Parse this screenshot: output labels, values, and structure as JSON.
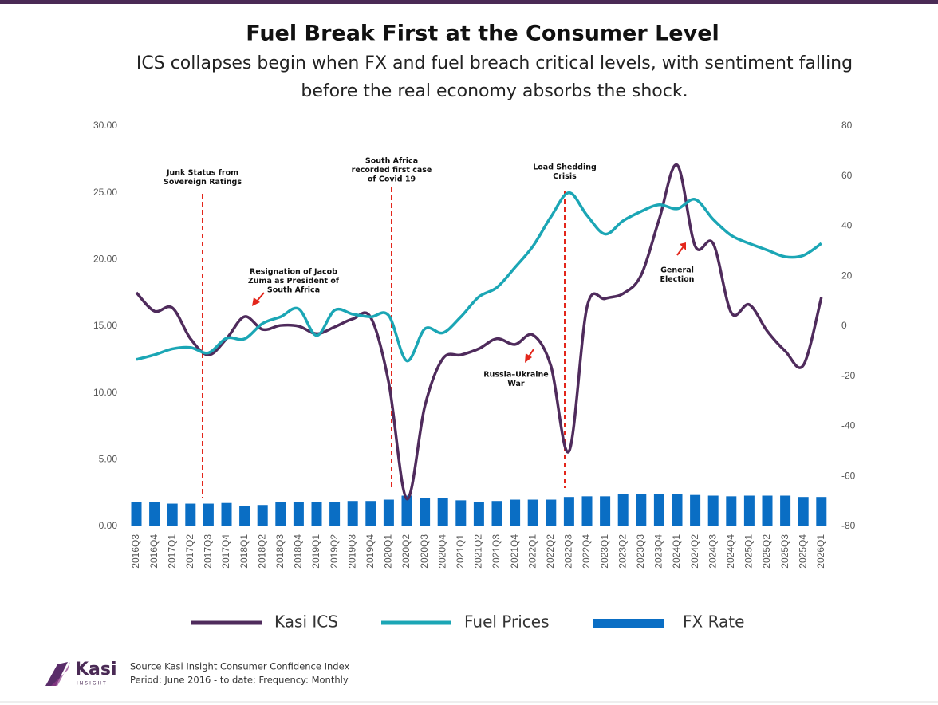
{
  "chart_data": {
    "type": "combo",
    "title": "Fuel Break First at the Consumer Level",
    "subtitle": [
      "ICS collapses begin when FX and fuel breach critical levels, with sentiment falling",
      "before the real economy absorbs the shock."
    ],
    "categories": [
      "2016Q3",
      "2016Q4",
      "2017Q1",
      "2017Q2",
      "2017Q3",
      "2017Q4",
      "2018Q1",
      "2018Q2",
      "2018Q3",
      "2018Q4",
      "2019Q1",
      "2019Q2",
      "2019Q3",
      "2019Q4",
      "2020Q1",
      "2020Q2",
      "2020Q3",
      "2020Q4",
      "2021Q1",
      "2021Q2",
      "2021Q3",
      "2021Q4",
      "2022Q1",
      "2022Q2",
      "2022Q3",
      "2022Q4",
      "2023Q1",
      "2023Q2",
      "2023Q3",
      "2023Q4",
      "2024Q1",
      "2024Q2",
      "2024Q3",
      "2024Q4",
      "2025Q1",
      "2025Q2",
      "2025Q3",
      "2025Q4",
      "2026Q1"
    ],
    "series": [
      {
        "name": "Kasi ICS",
        "type": "line",
        "axis": "y2",
        "color": "#4f2b5c",
        "values": [
          13.4,
          6,
          7.3,
          -5,
          -11.5,
          -5,
          3.8,
          -1.3,
          0.3,
          0,
          -3,
          -0.3,
          2.9,
          3.5,
          -22.6,
          -69,
          -32,
          -13,
          -11.5,
          -9,
          -5,
          -7.3,
          -3.5,
          -16,
          -50,
          7.7,
          11,
          13,
          20.4,
          42.7,
          64.4,
          32,
          33,
          5.4,
          8.6,
          -2,
          -10,
          -15.6,
          11.5
        ]
      },
      {
        "name": "Fuel Prices",
        "type": "line",
        "color": "#1ba6b5",
        "values": [
          12.5,
          12.85,
          13.3,
          13.4,
          13,
          14.1,
          14.05,
          15.2,
          15.7,
          16.3,
          14.3,
          16.2,
          15.9,
          15.7,
          15.8,
          12.4,
          14.8,
          14.5,
          15.7,
          17.2,
          17.9,
          19.4,
          21,
          23.2,
          25,
          23.3,
          21.9,
          22.9,
          23.6,
          24.1,
          23.8,
          24.5,
          23,
          21.8,
          21.2,
          20.7,
          20.2,
          20.3,
          21.2
        ]
      },
      {
        "name": "FX Rate",
        "type": "bar",
        "color": "#0a6ec4",
        "values": [
          1.8,
          1.8,
          1.7,
          1.7,
          1.7,
          1.75,
          1.55,
          1.6,
          1.8,
          1.85,
          1.8,
          1.85,
          1.9,
          1.9,
          2.0,
          2.3,
          2.15,
          2.1,
          1.95,
          1.85,
          1.9,
          2.0,
          2.0,
          2.0,
          2.2,
          2.25,
          2.25,
          2.4,
          2.4,
          2.4,
          2.4,
          2.35,
          2.3,
          2.25,
          2.3,
          2.3,
          2.3,
          2.2,
          2.2
        ]
      }
    ],
    "ylim": [
      0,
      30
    ],
    "yticks": [
      {
        "value": 0,
        "label": "0.00"
      },
      {
        "value": 5,
        "label": "5.00"
      },
      {
        "value": 10,
        "label": "10.00"
      },
      {
        "value": 15,
        "label": "15.00"
      },
      {
        "value": 20,
        "label": "20.00"
      },
      {
        "value": 25,
        "label": "25.00"
      },
      {
        "value": 30,
        "label": "30.00"
      }
    ],
    "y2lim": [
      -80,
      80
    ],
    "y2ticks": [
      -80,
      -60,
      -40,
      -20,
      0,
      20,
      40,
      60,
      80
    ],
    "annotations": [
      [
        "Junk Status from",
        "Sovereign Ratings"
      ],
      [
        "South Africa",
        "recorded first case",
        "of Covid 19"
      ],
      [
        "Load Shedding",
        "Crisis"
      ],
      [
        "Resignation of Jacob",
        "Zuma as President of",
        "South Africa"
      ],
      [
        "Russia–Ukraine",
        "War"
      ],
      [
        "General",
        "Election"
      ]
    ]
  },
  "footer": {
    "logo": "Kasi",
    "logo_sub": "INSIGHT",
    "source": "Source Kasi Insight Consumer Confidence Index",
    "period": "Period: June 2016 - to date; Frequency: Monthly"
  }
}
